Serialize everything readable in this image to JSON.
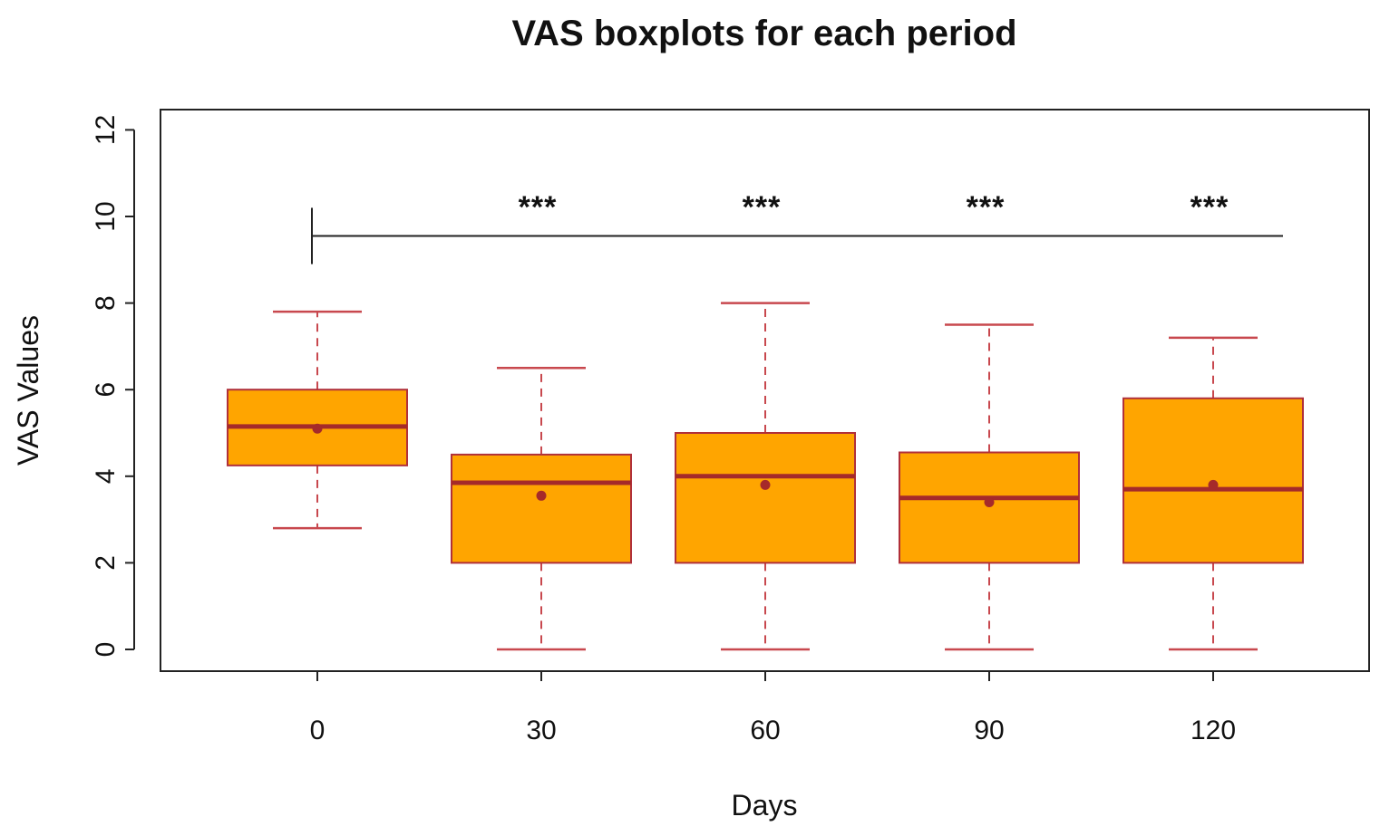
{
  "chart_data": {
    "type": "boxplot",
    "title": "VAS boxplots for each period",
    "xlabel": "Days",
    "ylabel": "VAS Values",
    "ylim": [
      -0.5,
      12.5
    ],
    "yticks": [
      "0",
      "2",
      "4",
      "6",
      "8",
      "10",
      "12"
    ],
    "categories": [
      "0",
      "30",
      "60",
      "90",
      "120"
    ],
    "boxes": [
      {
        "category": "0",
        "whisker_low": 2.8,
        "q1": 4.25,
        "median": 5.15,
        "q3": 6.0,
        "whisker_high": 7.8,
        "mean": 5.1
      },
      {
        "category": "30",
        "whisker_low": 0.0,
        "q1": 2.0,
        "median": 3.85,
        "q3": 4.5,
        "whisker_high": 6.5,
        "mean": 3.55
      },
      {
        "category": "60",
        "whisker_low": 0.0,
        "q1": 2.0,
        "median": 4.0,
        "q3": 5.0,
        "whisker_high": 8.0,
        "mean": 3.8
      },
      {
        "category": "90",
        "whisker_low": 0.0,
        "q1": 2.0,
        "median": 3.5,
        "q3": 4.55,
        "whisker_high": 7.5,
        "mean": 3.4
      },
      {
        "category": "120",
        "whisker_low": 0.0,
        "q1": 2.0,
        "median": 3.7,
        "q3": 5.8,
        "whisker_high": 7.2,
        "mean": 3.8
      }
    ],
    "significance": {
      "reference": "0",
      "bracket_y": 9.55,
      "bracket_tick_range": [
        8.9,
        10.2
      ],
      "marks": [
        {
          "category": "30",
          "label": "***"
        },
        {
          "category": "60",
          "label": "***"
        },
        {
          "category": "90",
          "label": "***"
        },
        {
          "category": "120",
          "label": "***"
        }
      ]
    },
    "colors": {
      "box_fill": "#FFA500",
      "box_border": "#B0303A",
      "median": "#A52A2A",
      "whisker": "#C8484E",
      "mean_point": "#A52A2A",
      "axis": "#222222"
    }
  }
}
